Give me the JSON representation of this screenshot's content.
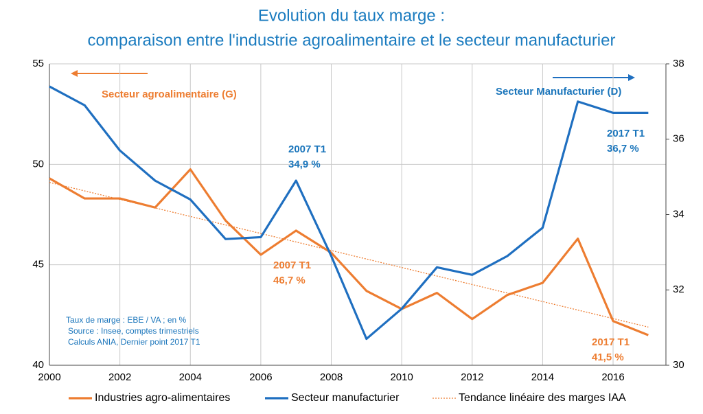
{
  "chart_data": {
    "type": "line",
    "title": "Evolution du taux marge :",
    "subtitle": "comparaison entre l'industrie agroalimentaire et le secteur manufacturier",
    "x": [
      2000,
      2001,
      2002,
      2003,
      2004,
      2005,
      2006,
      2007,
      2008,
      2009,
      2010,
      2011,
      2012,
      2013,
      2014,
      2015,
      2016,
      2017
    ],
    "xlim": [
      2000,
      2017.5
    ],
    "xticks": [
      2000,
      2002,
      2004,
      2006,
      2008,
      2010,
      2012,
      2014,
      2016
    ],
    "ylim": [
      40,
      55
    ],
    "yticks": [
      40,
      45,
      50,
      55
    ],
    "y2lim": [
      30,
      38
    ],
    "y2ticks": [
      30,
      32,
      34,
      36,
      38
    ],
    "grid": true,
    "legend": "bottom",
    "series": [
      {
        "name": "Industries agro-alimentaires",
        "color": "#ed7d31",
        "values": [
          49.3,
          48.3,
          48.3,
          47.85,
          49.75,
          47.2,
          45.5,
          46.7,
          45.6,
          43.7,
          42.8,
          43.6,
          42.3,
          43.5,
          44.1,
          46.3,
          42.2,
          41.5
        ]
      },
      {
        "name": "Secteur manufacturier",
        "color": "#1f6fc0",
        "axis": "y2",
        "values": [
          37.4,
          36.9,
          35.7,
          34.9,
          34.4,
          33.35,
          33.4,
          34.9,
          32.9,
          30.7,
          31.5,
          32.6,
          32.4,
          32.9,
          33.65,
          37.0,
          36.7,
          36.7
        ]
      }
    ],
    "trend": {
      "name": "Tendance linéaire des marges IAA",
      "color": "#ed7d31",
      "x": [
        2000,
        2017
      ],
      "values": [
        49.1,
        41.9
      ]
    },
    "annotations": [
      "Secteur agroalimentaire (G)",
      "Secteur Manufacturier (D)",
      "2007 T1",
      "34,9 %",
      "2007 T1",
      "46,7 %",
      "2017 T1",
      "36,7 %",
      "2017 T1",
      "41,5 %"
    ],
    "note": [
      "Taux de marge : EBE / VA ; en %",
      "Source : Insee, comptes trimestriels",
      "Calculs ANIA, Dernier point 2017 T1"
    ]
  }
}
